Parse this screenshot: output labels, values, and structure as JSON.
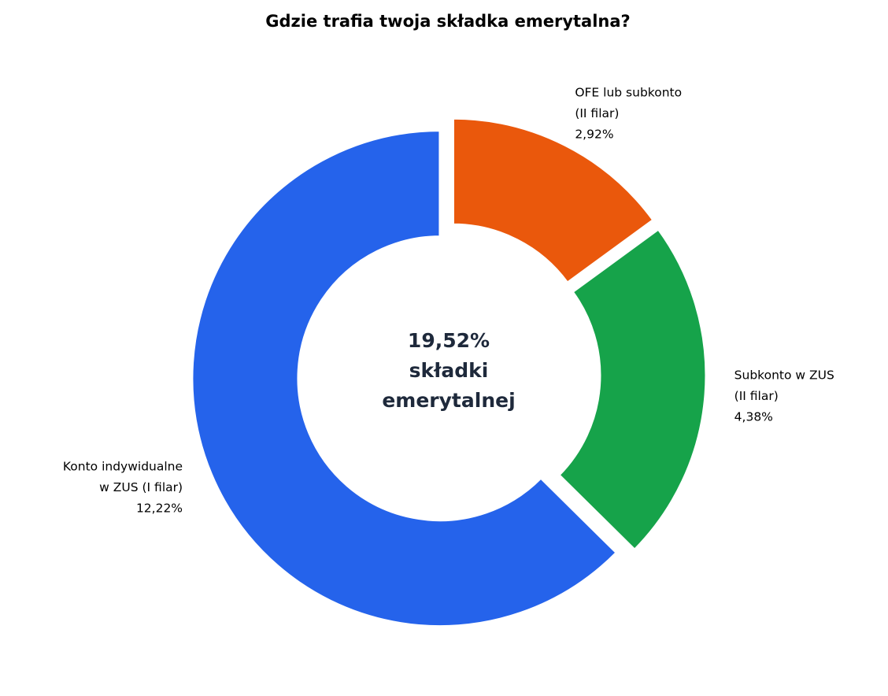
{
  "chart_data": {
    "type": "donut",
    "title": "Gdzie trafia twoja składka emerytalna?",
    "categories": [
      [
        "OFE lub subkonto",
        "(II filar)"
      ],
      [
        "Subkonto w ZUS",
        "(II filar)"
      ],
      [
        "Konto indywidualne",
        "w ZUS (I filar)"
      ]
    ],
    "values": [
      2.92,
      4.38,
      12.22
    ],
    "value_labels": [
      "2,92%",
      "4,38%",
      "12,22%"
    ],
    "colors": [
      "#ea580c",
      "#16a34a",
      "#2563eb"
    ],
    "center_label": [
      "19,52%",
      "składki",
      "emerytalnej"
    ]
  }
}
